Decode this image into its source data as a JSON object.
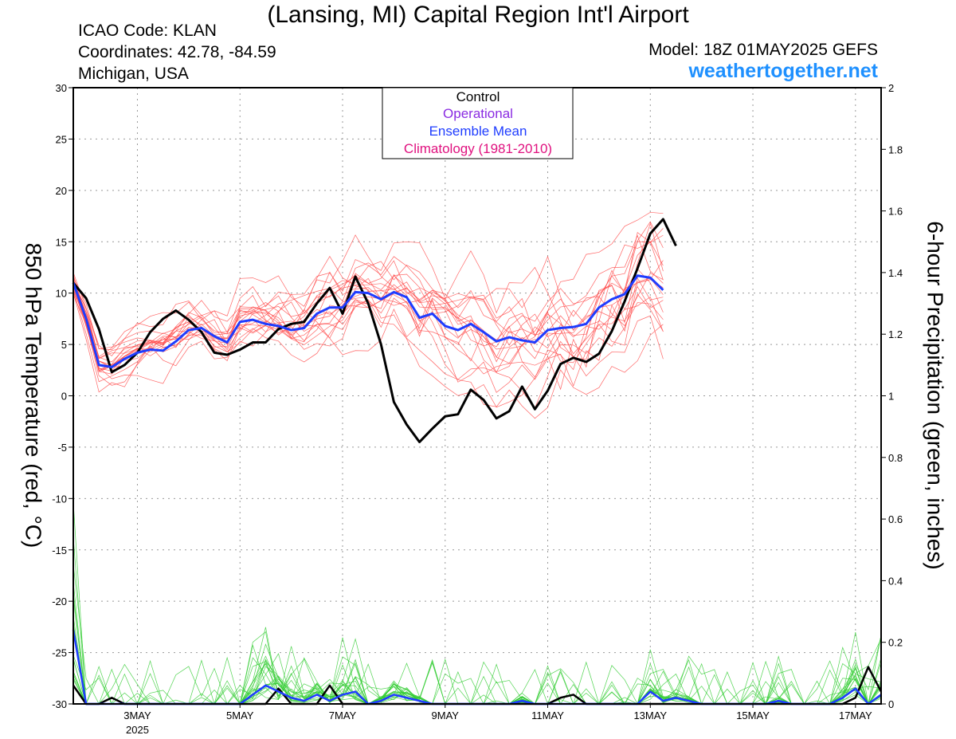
{
  "header": {
    "title": "(Lansing, MI) Capital Region Int'l Airport",
    "icao": "ICAO Code: KLAN",
    "coordinates": "Coordinates: 42.78, -84.59",
    "region": "Michigan, USA",
    "model": "Model: 18Z 01MAY2025 GEFS",
    "site": "weathertogether.net"
  },
  "legend": {
    "control": "Control",
    "operational": "Operational",
    "mean": "Ensemble Mean",
    "climatology": "Climatology (1981-2010)"
  },
  "colors": {
    "control": "#000000",
    "operational": "#8a2be2",
    "mean": "#1e3cff",
    "climatology": "#e0117f",
    "temp_members": "#ff4a4a",
    "precip_members": "#33cc33",
    "site": "#1e90ff"
  },
  "chart_data": {
    "type": "line",
    "title": "(Lansing, MI) Capital Region Int'l Airport",
    "ylabel": "850 hPa Temperature (red, °C)",
    "y2label": "6-hour Precipitation (green, inches)",
    "ylim": [
      -30,
      30
    ],
    "y2lim": [
      0,
      2
    ],
    "yticks": [
      -30,
      -25,
      -20,
      -15,
      -10,
      -5,
      0,
      5,
      10,
      15,
      20,
      25,
      30
    ],
    "y2ticks": [
      0,
      0.2,
      0.4,
      0.6,
      0.8,
      1,
      1.2,
      1.4,
      1.6,
      1.8,
      2
    ],
    "x_start": "2025-05-02 00Z",
    "x_step_hours": 6,
    "xlim_steps": [
      0,
      63
    ],
    "xticks": [
      {
        "label": "3MAY",
        "sub": "2025",
        "step": 5
      },
      {
        "label": "5MAY",
        "sub": "",
        "step": 13
      },
      {
        "label": "7MAY",
        "sub": "",
        "step": 21
      },
      {
        "label": "9MAY",
        "sub": "",
        "step": 29
      },
      {
        "label": "11MAY",
        "sub": "",
        "step": 37
      },
      {
        "label": "13MAY",
        "sub": "",
        "step": 45
      },
      {
        "label": "15MAY",
        "sub": "",
        "step": 53
      },
      {
        "label": "17MAY",
        "sub": "",
        "step": 61
      }
    ],
    "grid": true,
    "legend_position": "top-center",
    "series": [
      {
        "name": "Control",
        "axis": "left",
        "values": [
          11.0,
          9.5,
          6.5,
          2.3,
          3.0,
          4.2,
          6.2,
          7.5,
          8.3,
          7.4,
          6.2,
          4.2,
          4.0,
          4.5,
          5.2,
          5.2,
          6.5,
          7.0,
          7.2,
          9.0,
          10.5,
          8.0,
          11.6,
          9.0,
          5.0,
          -0.6,
          -2.8,
          -4.5,
          -3.2,
          -2.0,
          -1.8,
          0.6,
          -0.4,
          -2.2,
          -1.5,
          0.9,
          -1.3,
          0.5,
          3.1,
          3.7,
          3.3,
          4.1,
          6.3,
          9.2,
          12.4,
          15.8,
          17.2,
          14.6
        ]
      },
      {
        "name": "Ensemble Mean",
        "axis": "left",
        "values": [
          11.0,
          7.5,
          3.0,
          2.8,
          3.6,
          4.2,
          4.5,
          4.4,
          5.3,
          6.4,
          6.6,
          5.8,
          5.2,
          7.2,
          7.4,
          7.0,
          6.8,
          6.4,
          6.6,
          8.0,
          8.6,
          8.6,
          10.1,
          10.0,
          9.4,
          10.1,
          9.6,
          7.6,
          8.0,
          6.8,
          6.4,
          7.0,
          6.2,
          5.3,
          5.7,
          5.4,
          5.2,
          6.4,
          6.6,
          6.7,
          7.0,
          8.6,
          9.4,
          9.9,
          11.7,
          11.5,
          10.3
        ]
      },
      {
        "name": "Control precipitation",
        "axis": "right",
        "values": [
          0.06,
          0.0,
          0.0,
          0.02,
          0.0,
          0.0,
          0.0,
          0.0,
          0.0,
          0.0,
          0.0,
          0.0,
          0.0,
          0.0,
          0.0,
          0.0,
          0.05,
          0.0,
          0.0,
          0.0,
          0.06,
          0.0,
          0.0,
          0.0,
          0.0,
          0.0,
          0.0,
          0.0,
          0.0,
          0.0,
          0.0,
          0.0,
          0.0,
          0.0,
          0.0,
          0.0,
          0.0,
          0.0,
          0.02,
          0.03,
          0.0,
          0.0,
          0.0,
          0.0,
          0.0,
          0.0,
          0.0,
          0.0,
          0.0,
          0.0,
          0.0,
          0.0,
          0.0,
          0.0,
          0.0,
          0.0,
          0.0,
          0.0,
          0.0,
          0.0,
          0.0,
          0.02,
          0.12,
          0.04
        ]
      },
      {
        "name": "Ensemble mean precipitation",
        "axis": "right",
        "values": [
          0.24,
          0.0,
          0.0,
          0.0,
          0.0,
          0.0,
          0.0,
          0.0,
          0.0,
          0.0,
          0.0,
          0.0,
          0.0,
          0.0,
          0.03,
          0.06,
          0.04,
          0.02,
          0.01,
          0.03,
          0.01,
          0.03,
          0.04,
          0.0,
          0.01,
          0.03,
          0.02,
          0.01,
          0.0,
          0.0,
          0.0,
          0.0,
          0.0,
          0.0,
          0.0,
          0.01,
          0.0,
          0.0,
          0.0,
          0.0,
          0.0,
          0.0,
          0.0,
          0.0,
          0.0,
          0.04,
          0.01,
          0.02,
          0.01,
          0.0,
          0.0,
          0.0,
          0.0,
          0.0,
          0.0,
          0.01,
          0.0,
          0.0,
          0.0,
          0.0,
          0.02,
          0.05,
          0.0,
          0.03
        ]
      }
    ]
  }
}
